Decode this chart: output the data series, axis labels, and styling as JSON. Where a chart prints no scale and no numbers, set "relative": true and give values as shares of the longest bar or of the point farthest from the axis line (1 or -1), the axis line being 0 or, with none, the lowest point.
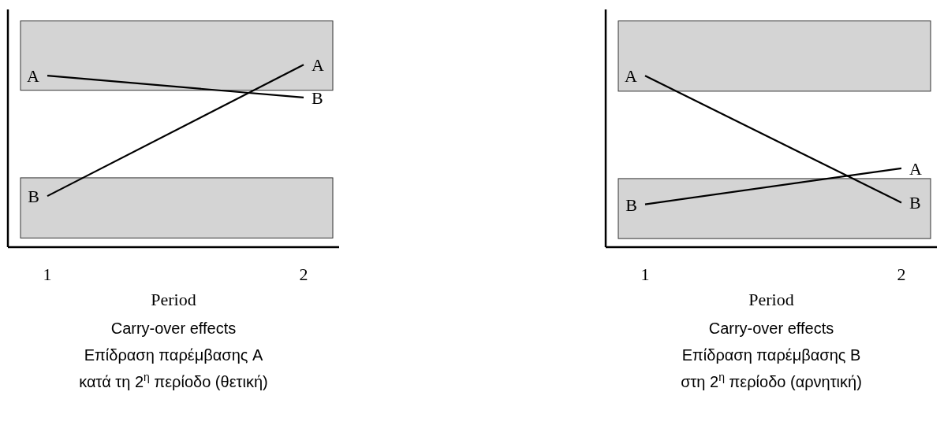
{
  "chart_data": [
    {
      "type": "line",
      "relative": true,
      "categories": [
        "1",
        "2"
      ],
      "xlabel": "Period",
      "series": [
        {
          "color": "#000000",
          "values": [
            0.94,
            0.82
          ]
        },
        {
          "color": "#000000",
          "values": [
            0.28,
            1.0
          ]
        }
      ],
      "bands": [
        {
          "axis": "y",
          "from": 0.86,
          "to": 1.24,
          "color": "#d4d4d4"
        },
        {
          "axis": "y",
          "from": 0.05,
          "to": 0.38,
          "color": "#d4d4d4"
        }
      ],
      "annotations": [
        {
          "text": "A",
          "x": "1",
          "y": 0.94
        },
        {
          "text": "B",
          "x": "2",
          "y": 0.82
        },
        {
          "text": "B",
          "x": "1",
          "y": 0.28
        },
        {
          "text": "A",
          "x": "2",
          "y": 1.0
        },
        "Carry-over effects",
        "Επίδραση παρέμβασης A",
        "κατά τη 2$^{η}$ περίοδο (θετική)"
      ]
    },
    {
      "type": "line",
      "relative": true,
      "categories": [
        "1",
        "2"
      ],
      "xlabel": "Period",
      "series": [
        {
          "color": "#000000",
          "values": [
            1.0,
            0.26
          ]
        },
        {
          "color": "#000000",
          "values": [
            0.25,
            0.46
          ]
        }
      ],
      "bands": [
        {
          "axis": "y",
          "from": 0.91,
          "to": 1.32,
          "color": "#d4d4d4"
        },
        {
          "axis": "y",
          "from": 0.05,
          "to": 0.4,
          "color": "#d4d4d4"
        }
      ],
      "annotations": [
        {
          "text": "A",
          "x": "1",
          "y": 1.0
        },
        {
          "text": "B",
          "x": "2",
          "y": 0.26
        },
        {
          "text": "B",
          "x": "1",
          "y": 0.25
        },
        {
          "text": "A",
          "x": "2",
          "y": 0.46
        },
        "Carry-over effects",
        "Επίδραση παρέμβασης B",
        "στη 2$^{η}$ περίοδο (αρνητική)"
      ]
    }
  ]
}
